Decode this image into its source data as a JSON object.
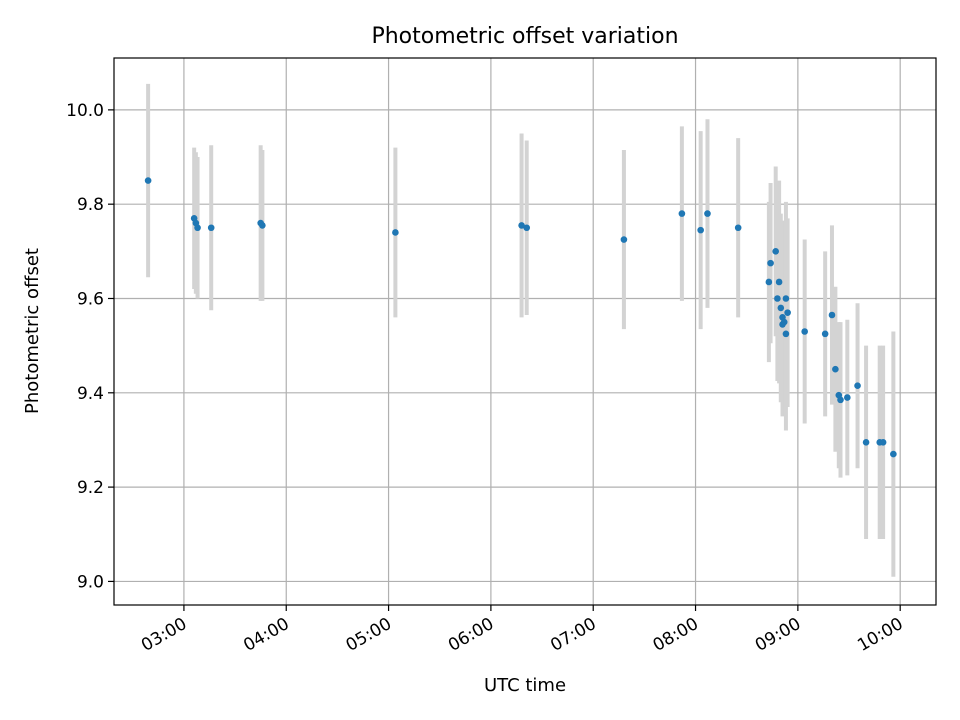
{
  "chart_data": {
    "type": "scatter",
    "title": "Photometric offset variation",
    "xlabel": "UTC time",
    "ylabel": "Photometric offset",
    "xlim": [
      "02:19",
      "10:21"
    ],
    "ylim": [
      8.95,
      10.11
    ],
    "grid": true,
    "x_ticks": [
      "03:00",
      "04:00",
      "05:00",
      "06:00",
      "07:00",
      "08:00",
      "09:00",
      "10:00"
    ],
    "y_ticks": [
      "9.0",
      "9.2",
      "9.4",
      "9.6",
      "9.8",
      "10.0"
    ],
    "colors": {
      "marker": "#1f77b4",
      "errorbar": "#d3d3d3",
      "grid": "#b0b0b0"
    },
    "points": [
      {
        "x": "02:39",
        "y": 9.85,
        "yerr": 0.205
      },
      {
        "x": "03:06",
        "y": 9.77,
        "yerr": 0.15
      },
      {
        "x": "03:07",
        "y": 9.76,
        "yerr": 0.15
      },
      {
        "x": "03:08",
        "y": 9.75,
        "yerr": 0.15
      },
      {
        "x": "03:16",
        "y": 9.75,
        "yerr": 0.175
      },
      {
        "x": "03:45",
        "y": 9.76,
        "yerr": 0.165
      },
      {
        "x": "03:46",
        "y": 9.755,
        "yerr": 0.16
      },
      {
        "x": "05:04",
        "y": 9.74,
        "yerr": 0.18
      },
      {
        "x": "06:18",
        "y": 9.755,
        "yerr": 0.195
      },
      {
        "x": "06:21",
        "y": 9.75,
        "yerr": 0.185
      },
      {
        "x": "07:18",
        "y": 9.725,
        "yerr": 0.19
      },
      {
        "x": "07:52",
        "y": 9.78,
        "yerr": 0.185
      },
      {
        "x": "08:03",
        "y": 9.745,
        "yerr": 0.21
      },
      {
        "x": "08:07",
        "y": 9.78,
        "yerr": 0.2
      },
      {
        "x": "08:25",
        "y": 9.75,
        "yerr": 0.19
      },
      {
        "x": "08:43",
        "y": 9.635,
        "yerr": 0.17
      },
      {
        "x": "08:44",
        "y": 9.675,
        "yerr": 0.17
      },
      {
        "x": "08:47",
        "y": 9.7,
        "yerr": 0.18
      },
      {
        "x": "08:48",
        "y": 9.6,
        "yerr": 0.175
      },
      {
        "x": "08:49",
        "y": 9.635,
        "yerr": 0.215
      },
      {
        "x": "08:50",
        "y": 9.58,
        "yerr": 0.2
      },
      {
        "x": "08:51",
        "y": 9.56,
        "yerr": 0.205
      },
      {
        "x": "08:51",
        "y": 9.545,
        "yerr": 0.195
      },
      {
        "x": "08:52",
        "y": 9.55,
        "yerr": 0.195
      },
      {
        "x": "08:53",
        "y": 9.6,
        "yerr": 0.205
      },
      {
        "x": "08:53",
        "y": 9.525,
        "yerr": 0.205
      },
      {
        "x": "08:54",
        "y": 9.57,
        "yerr": 0.2
      },
      {
        "x": "09:04",
        "y": 9.53,
        "yerr": 0.195
      },
      {
        "x": "09:16",
        "y": 9.525,
        "yerr": 0.175
      },
      {
        "x": "09:20",
        "y": 9.565,
        "yerr": 0.19
      },
      {
        "x": "09:22",
        "y": 9.45,
        "yerr": 0.175
      },
      {
        "x": "09:24",
        "y": 9.395,
        "yerr": 0.155
      },
      {
        "x": "09:25",
        "y": 9.385,
        "yerr": 0.165
      },
      {
        "x": "09:29",
        "y": 9.39,
        "yerr": 0.165
      },
      {
        "x": "09:35",
        "y": 9.415,
        "yerr": 0.175
      },
      {
        "x": "09:40",
        "y": 9.295,
        "yerr": 0.205
      },
      {
        "x": "09:48",
        "y": 9.295,
        "yerr": 0.205
      },
      {
        "x": "09:50",
        "y": 9.295,
        "yerr": 0.205
      },
      {
        "x": "09:56",
        "y": 9.27,
        "yerr": 0.26
      }
    ]
  }
}
